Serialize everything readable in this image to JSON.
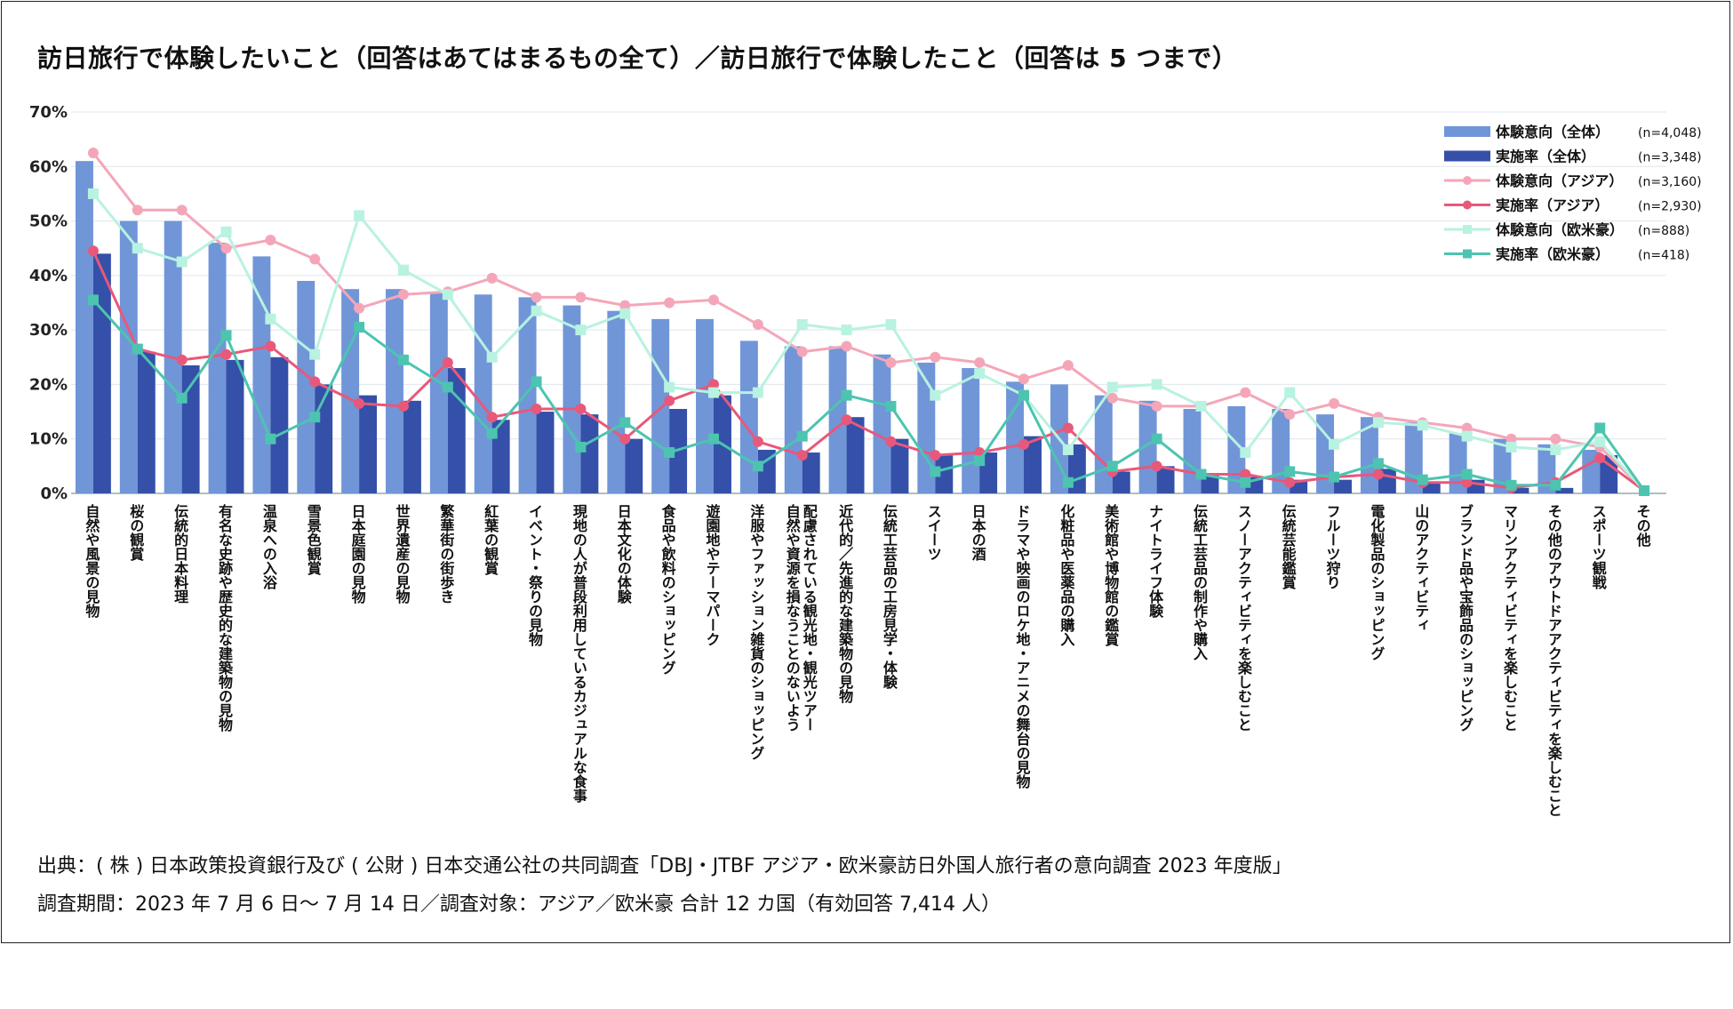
{
  "title": "訪日旅行で体験したいこと（回答はあてはまるもの全て）／訪日旅行で体験したこと（回答は 5 つまで）",
  "source": "出典：( 株 ) 日本政策投資銀行及び ( 公財 ) 日本交通公社の共同調査「DBJ・JTBF アジア・欧米豪訪日外国人旅行者の意向調査 2023 年度版」",
  "period": "調査期間：2023 年 7 月 6 日〜 7 月 14 日／調査対象：アジア／欧米豪 合計 12 カ国（有効回答 7,414 人）",
  "chart_data": {
    "type": "bar",
    "ylim": [
      0,
      70
    ],
    "yticks": [
      0,
      10,
      20,
      30,
      40,
      50,
      60,
      70
    ],
    "ytick_labels": [
      "0%",
      "10%",
      "20%",
      "30%",
      "40%",
      "50%",
      "60%",
      "70%"
    ],
    "grid": true,
    "legend_position": "top-right",
    "categories": [
      [
        "自然や風景の見物"
      ],
      [
        "桜の観賞"
      ],
      [
        "伝統的日本料理"
      ],
      [
        "有名な史跡や歴史的な建築物の見物"
      ],
      [
        "温泉への入浴"
      ],
      [
        "雪景色観賞"
      ],
      [
        "日本庭園の見物"
      ],
      [
        "世界遺産の見物"
      ],
      [
        "繁華街の街歩き"
      ],
      [
        "紅葉の観賞"
      ],
      [
        "イベント・祭りの見物"
      ],
      [
        "現地の人が普段利用しているカジュアルな食事"
      ],
      [
        "日本文化の体験"
      ],
      [
        "食品や飲料のショッピング"
      ],
      [
        "遊園地やテーマパーク"
      ],
      [
        "洋服やファッション雑貨のショッピング"
      ],
      [
        "自然や資源を損なうことのないよう",
        "配慮されている観光地・観光ツアー"
      ],
      [
        "近代的／先進的な建築物の見物"
      ],
      [
        "伝統工芸品の工房見学・体験"
      ],
      [
        "スイーツ"
      ],
      [
        "日本の酒"
      ],
      [
        "ドラマや映画のロケ地・アニメの舞台の見物"
      ],
      [
        "化粧品や医薬品の購入"
      ],
      [
        "美術館や博物館の鑑賞"
      ],
      [
        "ナイトライフ体験"
      ],
      [
        "伝統工芸品の制作や購入"
      ],
      [
        "スノーアクティビティを楽しむこと"
      ],
      [
        "伝統芸能鑑賞"
      ],
      [
        "フルーツ狩り"
      ],
      [
        "電化製品のショッピング"
      ],
      [
        "山のアクティビティ"
      ],
      [
        "ブランド品や宝飾品のショッピング"
      ],
      [
        "マリンアクティビティを楽しむこと"
      ],
      [
        "その他のアウトドアアクティビティを楽しむこと"
      ],
      [
        "スポーツ観戦"
      ],
      [
        "その他"
      ]
    ],
    "series": [
      {
        "name": "体験意向（全体）",
        "n": "(n=4,048)",
        "kind": "bar",
        "color": "#7096d8",
        "values": [
          61,
          50,
          50,
          46,
          43.5,
          39,
          37.5,
          37.5,
          37,
          36.5,
          36,
          34.5,
          33.5,
          32,
          32,
          28,
          27,
          27,
          25.5,
          24,
          23,
          20.5,
          20,
          18,
          17,
          15.5,
          16,
          15.5,
          14.5,
          14,
          13,
          11,
          10,
          9,
          8,
          0
        ]
      },
      {
        "name": "実施率（全体）",
        "n": "(n=3,348)",
        "kind": "bar",
        "color": "#3450a8",
        "values": [
          44,
          26,
          23.5,
          24.5,
          25,
          20,
          18,
          17,
          23,
          13.5,
          15,
          14.5,
          10,
          15.5,
          18,
          8,
          7.5,
          14,
          10,
          7,
          7.5,
          10.5,
          9,
          4,
          5,
          3.5,
          3,
          2.5,
          2.5,
          4.5,
          2,
          2.5,
          1,
          1,
          7,
          0
        ]
      },
      {
        "name": "体験意向（アジア）",
        "n": "(n=3,160)",
        "kind": "line",
        "color": "#f4a6b8",
        "marker": "circle",
        "values": [
          62.5,
          52,
          52,
          45,
          46.5,
          43,
          34,
          36.5,
          37,
          39.5,
          36,
          36,
          34.5,
          35,
          35.5,
          31,
          26,
          27,
          24,
          25,
          24,
          21,
          23.5,
          17.5,
          16,
          16,
          18.5,
          14.5,
          16.5,
          14,
          13,
          12,
          10,
          10,
          8.5,
          0.5
        ]
      },
      {
        "name": "実施率（アジア）",
        "n": "(n=2,930)",
        "kind": "line",
        "color": "#e8587a",
        "marker": "circle",
        "values": [
          44.5,
          26.5,
          24.5,
          25.5,
          27,
          20.5,
          16.5,
          16,
          24,
          14,
          15.5,
          15.5,
          10,
          17,
          20,
          9.5,
          7,
          13.5,
          9.5,
          7,
          7.5,
          9,
          12,
          4,
          5,
          3.5,
          3.5,
          2,
          3,
          3.5,
          2,
          2,
          1,
          2,
          6.5,
          0.5
        ]
      },
      {
        "name": "体験意向（欧米豪）",
        "n": "(n=888)",
        "kind": "line",
        "color": "#b8f2e0",
        "marker": "square",
        "values": [
          55,
          45,
          42.5,
          48,
          32,
          25.5,
          51,
          41,
          36.5,
          25,
          33.5,
          30,
          33,
          19.5,
          18.5,
          18.5,
          31,
          30,
          31,
          18,
          22,
          18,
          8,
          19.5,
          20,
          16,
          7.5,
          18.5,
          9,
          13,
          12.5,
          10.5,
          8.5,
          8,
          9.5,
          0.5
        ]
      },
      {
        "name": "実施率（欧米豪）",
        "n": "(n=418)",
        "kind": "line",
        "color": "#4cc4b0",
        "marker": "square",
        "values": [
          35.5,
          26.5,
          17.5,
          29,
          10,
          14,
          30.5,
          24.5,
          19.5,
          11,
          20.5,
          8.5,
          13,
          7.5,
          10,
          5,
          10.5,
          18,
          16,
          4,
          6,
          18,
          2,
          5,
          10,
          3.5,
          2,
          4,
          3,
          5.5,
          2.5,
          3.5,
          1.5,
          1.5,
          12,
          0.5
        ]
      }
    ]
  }
}
